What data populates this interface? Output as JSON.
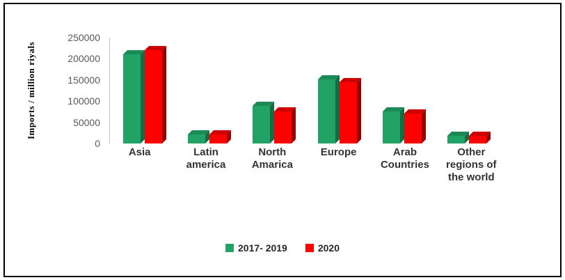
{
  "chart_data": {
    "type": "bar",
    "style": "3d-clustered-column",
    "title": "",
    "xlabel": "",
    "ylabel": "Imports / million riyals",
    "categories": [
      "Asia",
      "Latin america",
      "North Amarica",
      "Europe",
      "Arab Countries",
      "Other regions of the world"
    ],
    "series": [
      {
        "name": "2017- 2019",
        "color": "#21A366",
        "top_color": "#1C8A57",
        "side_color": "#156B44",
        "values": [
          210000,
          22000,
          88000,
          152000,
          75000,
          18000
        ]
      },
      {
        "name": "2020",
        "color": "#FE0000",
        "top_color": "#CC0000",
        "side_color": "#990000",
        "values": [
          220000,
          22000,
          75000,
          145000,
          70000,
          18000
        ]
      }
    ],
    "ylim": [
      0,
      250000
    ],
    "yticks": [
      0,
      50000,
      100000,
      150000,
      200000,
      250000
    ],
    "legend_position": "bottom",
    "grid": false,
    "colors": {
      "frame_border": "#000000",
      "axis_line": "#BFBFBF",
      "tick_text": "#595959",
      "category_text": "#333333"
    }
  }
}
